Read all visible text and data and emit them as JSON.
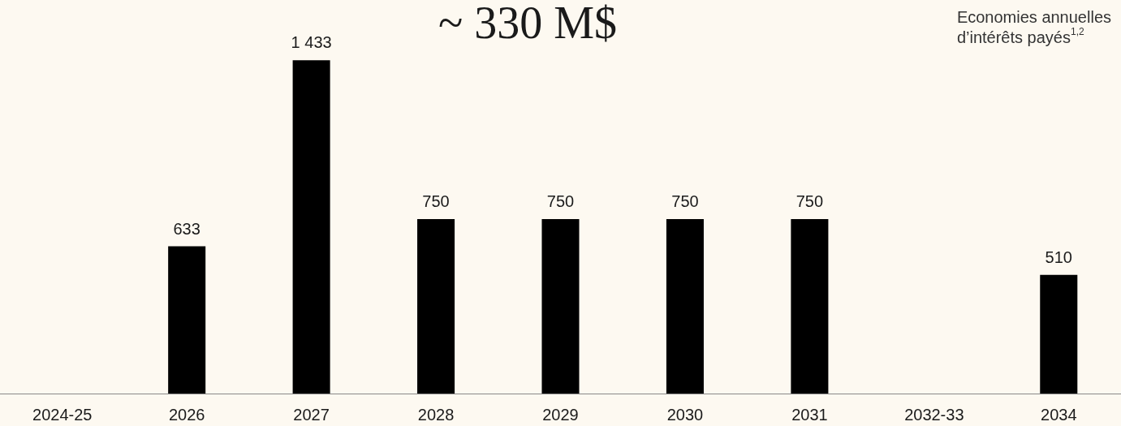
{
  "chart_data": {
    "type": "bar",
    "categories": [
      "2024-25",
      "2026",
      "2027",
      "2028",
      "2029",
      "2030",
      "2031",
      "2032-33",
      "2034"
    ],
    "values": [
      null,
      633,
      1433,
      750,
      750,
      750,
      750,
      null,
      510
    ],
    "value_labels": [
      null,
      "633",
      "1 433",
      "750",
      "750",
      "750",
      "750",
      null,
      "510"
    ],
    "color": "#000000",
    "annotations": [
      "~ 330 M$",
      "Economies annuelles d’intérêts payés$^{1,2}$"
    ]
  }
}
